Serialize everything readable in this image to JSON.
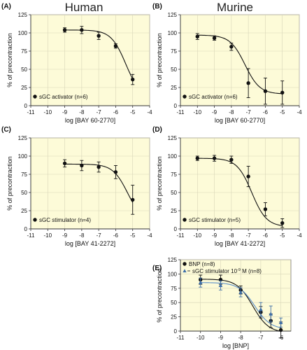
{
  "column_titles": {
    "left": "Human",
    "right": "Murine"
  },
  "chart_data": [
    {
      "type": "scatter",
      "panel": "(A)",
      "xlabel": "log [BAY 60-2770]",
      "ylabel": "% of precontraction",
      "xlim": [
        -11,
        -4
      ],
      "ylim": [
        0,
        125
      ],
      "xticks": [
        -11,
        -10,
        -9,
        -8,
        -7,
        -6,
        -5,
        -4
      ],
      "yticks": [
        0,
        25,
        50,
        75,
        100,
        125
      ],
      "legend_position": "bottom-left",
      "fit_curve": {
        "top": 104,
        "bottom": 10,
        "logEC50": -5.4,
        "hill": 1.0
      },
      "series": [
        {
          "name": "sGC activator (n=6)",
          "color": "#111111",
          "marker": "circle",
          "x": [
            -9,
            -8,
            -7,
            -6,
            -5
          ],
          "y": [
            104,
            104,
            96,
            82,
            36
          ],
          "err": [
            3,
            5,
            5,
            3,
            7
          ]
        }
      ]
    },
    {
      "type": "scatter",
      "panel": "(B)",
      "xlabel": "log [BAY 60-2770]",
      "ylabel": "% of precontraction",
      "xlim": [
        -11,
        -4
      ],
      "ylim": [
        0,
        125
      ],
      "xticks": [
        -11,
        -10,
        -9,
        -8,
        -7,
        -6,
        -5,
        -4
      ],
      "yticks": [
        0,
        25,
        50,
        75,
        100,
        125
      ],
      "legend_position": "bottom-left",
      "fit_curve": {
        "top": 97,
        "bottom": 16,
        "logEC50": -7.2,
        "hill": 1.0
      },
      "series": [
        {
          "name": "sGC activator (n=6)",
          "color": "#111111",
          "marker": "circle",
          "x": [
            -10,
            -9,
            -8,
            -7,
            -6,
            -5
          ],
          "y": [
            95,
            93,
            81,
            31,
            20,
            18
          ],
          "err": [
            4,
            3,
            5,
            20,
            18,
            16
          ]
        }
      ]
    },
    {
      "type": "scatter",
      "panel": "(C)",
      "xlabel": "log [BAY 41-2272]",
      "ylabel": "% of precontraction",
      "xlim": [
        -11,
        -4
      ],
      "ylim": [
        0,
        125
      ],
      "xticks": [
        -11,
        -10,
        -9,
        -8,
        -7,
        -6,
        -5,
        -4
      ],
      "yticks": [
        0,
        25,
        50,
        75,
        100,
        125
      ],
      "legend_position": "bottom-left",
      "fit_curve": {
        "top": 89,
        "bottom": 10,
        "logEC50": -5.3,
        "hill": 1.0
      },
      "series": [
        {
          "name": "sGC stimulator (n=4)",
          "color": "#111111",
          "marker": "circle",
          "x": [
            -9,
            -8,
            -7,
            -6,
            -5
          ],
          "y": [
            90,
            87,
            85,
            78,
            40
          ],
          "err": [
            5,
            7,
            7,
            9,
            20
          ]
        }
      ]
    },
    {
      "type": "scatter",
      "panel": "(D)",
      "xlabel": "log [BAY 41-2272]",
      "ylabel": "% of precontraction",
      "xlim": [
        -11,
        -4
      ],
      "ylim": [
        0,
        125
      ],
      "xticks": [
        -11,
        -10,
        -9,
        -8,
        -7,
        -6,
        -5,
        -4
      ],
      "yticks": [
        0,
        25,
        50,
        75,
        100,
        125
      ],
      "legend_position": "bottom-left",
      "fit_curve": {
        "top": 97,
        "bottom": 3,
        "logEC50": -6.8,
        "hill": 1.0
      },
      "series": [
        {
          "name": "sGC stimulator (n=5)",
          "color": "#111111",
          "marker": "circle",
          "x": [
            -10,
            -9,
            -8,
            -7,
            -6,
            -5
          ],
          "y": [
            97,
            97,
            95,
            72,
            27,
            8
          ],
          "err": [
            3,
            4,
            5,
            14,
            9,
            6
          ]
        }
      ]
    },
    {
      "type": "scatter",
      "panel": "(E)",
      "xlabel": "log [BNP]",
      "ylabel": "% of precontraction",
      "xlim": [
        -11,
        -5.5
      ],
      "ylim": [
        0,
        125
      ],
      "xticks": [
        -11,
        -10,
        -9,
        -8,
        -7,
        -6
      ],
      "yticks": [
        0,
        25,
        50,
        75,
        100,
        125
      ],
      "legend_position": "top-left",
      "series": [
        {
          "name": "BNP (n=8)",
          "color": "#111111",
          "marker": "circle",
          "x": [
            -10,
            -9,
            -8,
            -7,
            -6.5,
            -6
          ],
          "y": [
            90,
            90,
            72,
            33,
            18,
            2
          ],
          "err": [
            8,
            8,
            7,
            10,
            12,
            14
          ],
          "fit_curve": {
            "top": 91,
            "bottom": -3,
            "logEC50": -7.4,
            "hill": 1.1
          }
        },
        {
          "name": "sGC stimulator 10",
          "name_superscript": "-9",
          "name_suffix": " M (n=8)",
          "color": "#3f6fa8",
          "marker": "triangle",
          "x": [
            -10,
            -9,
            -8,
            -7,
            -6.5,
            -6
          ],
          "y": [
            85,
            80,
            68,
            38,
            30,
            15
          ],
          "err": [
            8,
            8,
            8,
            12,
            14,
            8
          ],
          "fit_curve": {
            "top": 85,
            "bottom": 3,
            "logEC50": -7.3,
            "hill": 1.1
          }
        }
      ]
    }
  ]
}
